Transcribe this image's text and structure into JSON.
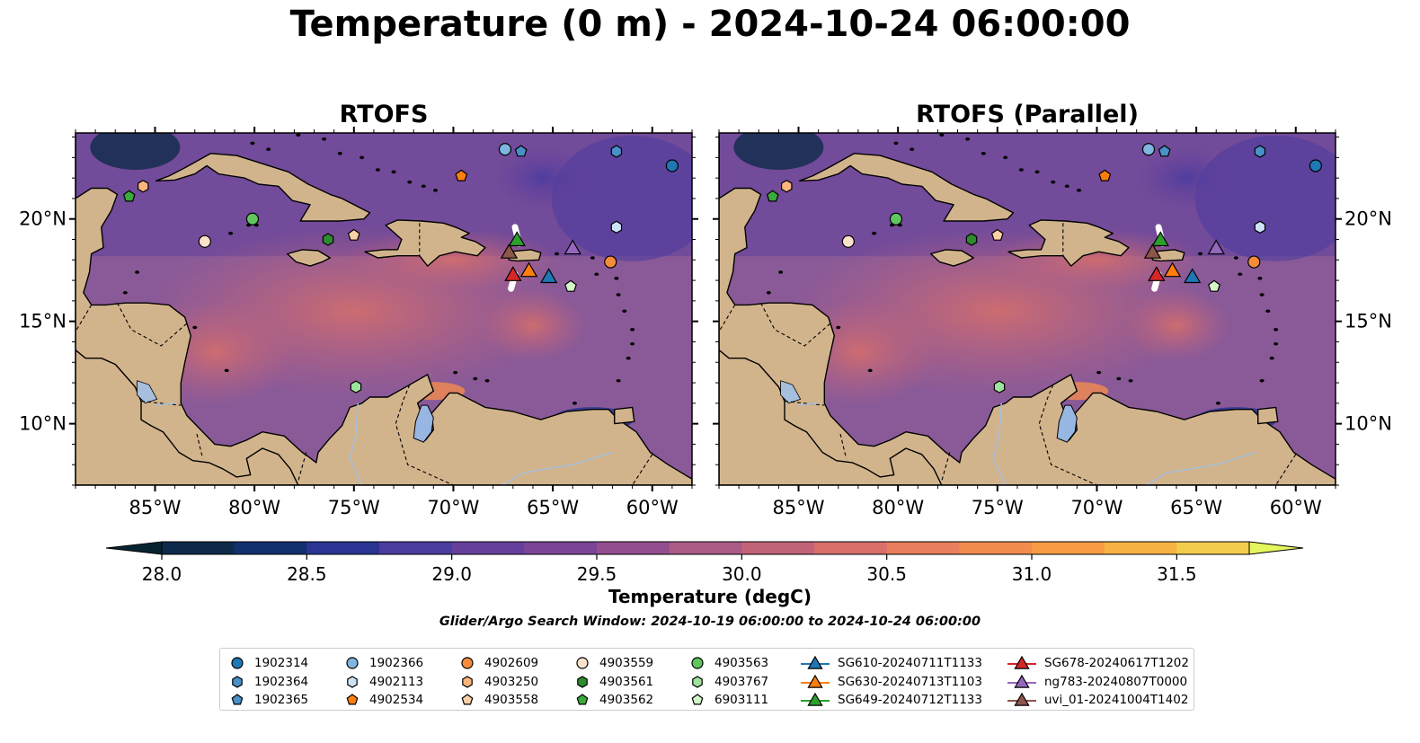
{
  "title": "Temperature (0 m) - 2024-10-24 06:00:00",
  "panels": [
    {
      "title": "RTOFS"
    },
    {
      "title": "RTOFS (Parallel)"
    }
  ],
  "map": {
    "lon_range": [
      -89,
      -58
    ],
    "lat_range": [
      7,
      24.2
    ],
    "lon_ticks": [
      {
        "v": -85,
        "label": "85°W"
      },
      {
        "v": -80,
        "label": "80°W"
      },
      {
        "v": -75,
        "label": "75°W"
      },
      {
        "v": -70,
        "label": "70°W"
      },
      {
        "v": -65,
        "label": "65°W"
      },
      {
        "v": -60,
        "label": "60°W"
      }
    ],
    "lat_ticks": [
      {
        "v": 10,
        "label": "10°N"
      },
      {
        "v": 15,
        "label": "15°N"
      },
      {
        "v": 20,
        "label": "20°N"
      }
    ],
    "colors": {
      "land": "#d2b48c",
      "lake": "#97b6e1",
      "river": "#a5bfdd",
      "coast": "#000000",
      "ocean_base": "#8a5a98"
    }
  },
  "colorbar": {
    "label": "Temperature (degC)",
    "vmin": 28.0,
    "vmax": 31.75,
    "step": 0.25,
    "ticks": [
      {
        "v": 28.0,
        "label": "28.0"
      },
      {
        "v": 28.5,
        "label": "28.5"
      },
      {
        "v": 29.0,
        "label": "29.0"
      },
      {
        "v": 29.5,
        "label": "29.5"
      },
      {
        "v": 30.0,
        "label": "30.0"
      },
      {
        "v": 30.5,
        "label": "30.5"
      },
      {
        "v": 31.0,
        "label": "31.0"
      },
      {
        "v": 31.5,
        "label": "31.5"
      }
    ],
    "colors": [
      "#0e2a4a",
      "#12306e",
      "#2a3593",
      "#4b3c9f",
      "#663f9c",
      "#7b4597",
      "#934e90",
      "#ac5a86",
      "#c3637a",
      "#d86f6a",
      "#e97d5c",
      "#f38b4f",
      "#f79c45",
      "#f6b243",
      "#f3cc4d"
    ],
    "under_color": "#062430",
    "over_color": "#e5f55d"
  },
  "search_window": "Glider/Argo Search Window: 2024-10-19 06:00:00 to 2024-10-24 06:00:00",
  "platforms": [
    {
      "id": "1902314",
      "marker": "circle",
      "color": "#1f77b4",
      "lon": -59.0,
      "lat": 22.6
    },
    {
      "id": "1902364",
      "marker": "hexagon",
      "color": "#4a90c8",
      "lon": -61.8,
      "lat": 23.3
    },
    {
      "id": "1902365",
      "marker": "pentagon",
      "color": "#4a90c8",
      "lon": -66.6,
      "lat": 23.3
    },
    {
      "id": "1902366",
      "marker": "circle",
      "color": "#7fb5e0",
      "lon": -67.4,
      "lat": 23.4
    },
    {
      "id": "4902113",
      "marker": "hexagon",
      "color": "#cce3f5",
      "lon": -61.8,
      "lat": 19.6
    },
    {
      "id": "4902534",
      "marker": "pentagon",
      "color": "#ff7f0e",
      "lon": -69.6,
      "lat": 22.1
    },
    {
      "id": "4902609",
      "marker": "circle",
      "color": "#f58b3b",
      "lon": -62.1,
      "lat": 17.9
    },
    {
      "id": "4903250",
      "marker": "hexagon",
      "color": "#fcb57d",
      "lon": -85.6,
      "lat": 21.6
    },
    {
      "id": "4903558",
      "marker": "pentagon",
      "color": "#fdd0a8",
      "lon": -75.0,
      "lat": 19.2
    },
    {
      "id": "4903559",
      "marker": "circle",
      "color": "#fde2cb",
      "lon": -82.5,
      "lat": 18.9
    },
    {
      "id": "4903561",
      "marker": "hexagon",
      "color": "#2e8b2e",
      "lon": -76.3,
      "lat": 19.0
    },
    {
      "id": "4903562",
      "marker": "pentagon",
      "color": "#3aaa3a",
      "lon": -86.3,
      "lat": 21.1
    },
    {
      "id": "4903563",
      "marker": "circle",
      "color": "#5fc65f",
      "lon": -80.1,
      "lat": 20.0
    },
    {
      "id": "4903767",
      "marker": "hexagon",
      "color": "#9de39d",
      "lon": -74.9,
      "lat": 11.8
    },
    {
      "id": "6903111",
      "marker": "pentagon",
      "color": "#d4f5c8",
      "lon": -64.1,
      "lat": 16.7
    }
  ],
  "gliders": [
    {
      "id": "SG610-20240711T1133",
      "color": "#1f77b4",
      "lon": -65.2,
      "lat": 17.2
    },
    {
      "id": "SG630-20240713T1103",
      "color": "#ff7f0e",
      "lon": -66.2,
      "lat": 17.5
    },
    {
      "id": "SG649-20240712T1133",
      "color": "#2ca02c",
      "lon": -66.8,
      "lat": 19.0
    },
    {
      "id": "SG678-20240617T1202",
      "color": "#d62728",
      "lon": -67.0,
      "lat": 17.3
    },
    {
      "id": "ng783-20240807T0000",
      "color": "#9467bd",
      "lon": -64.0,
      "lat": 18.6
    },
    {
      "id": "uvi_01-20241004T1402",
      "color": "#8c564b",
      "lon": -67.2,
      "lat": 18.4
    }
  ]
}
